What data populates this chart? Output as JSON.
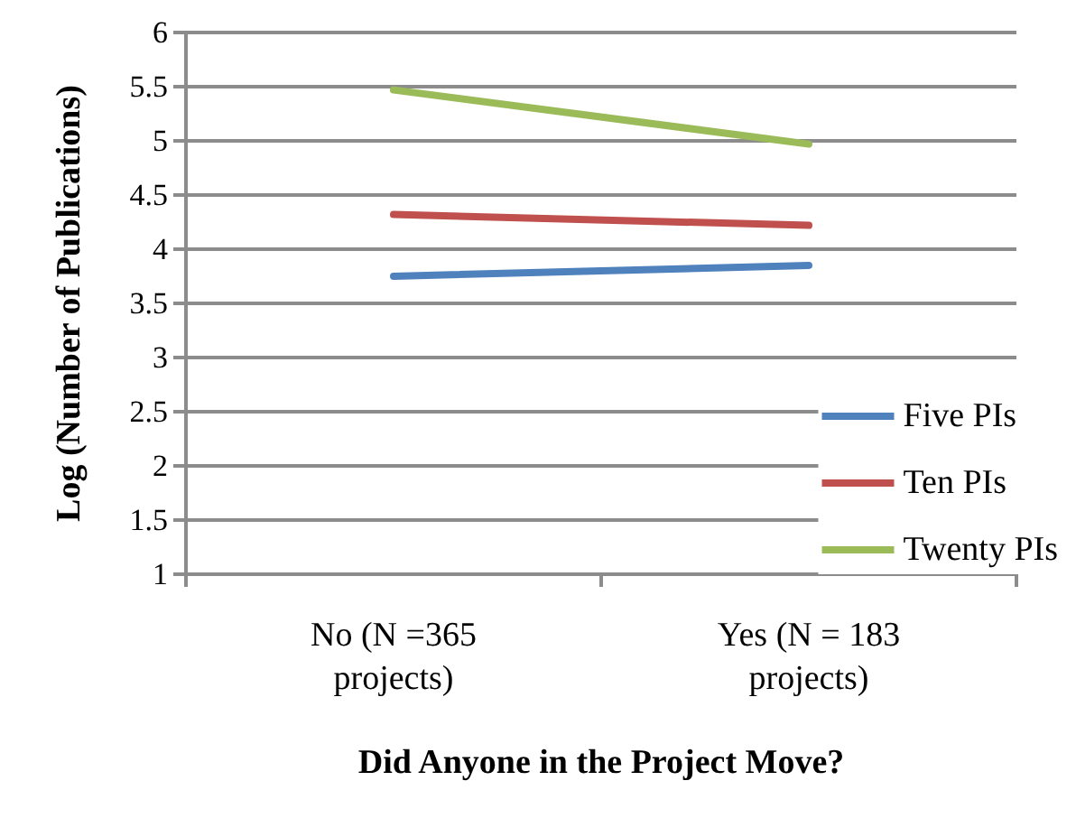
{
  "chart_data": {
    "type": "line",
    "xlabel": "Did Anyone in the Project Move?",
    "ylabel": "Log (Number of Publications)",
    "categories": [
      "No (N =365\nprojects)",
      "Yes (N = 183\nprojects)"
    ],
    "series": [
      {
        "name": "Five PIs",
        "color": "#4f81bd",
        "values": [
          3.75,
          3.85
        ]
      },
      {
        "name": "Ten PIs",
        "color": "#c0504d",
        "values": [
          4.32,
          4.22
        ]
      },
      {
        "name": "Twenty PIs",
        "color": "#9bbb59",
        "values": [
          5.47,
          4.97
        ]
      }
    ],
    "ylim": [
      1,
      6
    ],
    "yticks": [
      1,
      1.5,
      2,
      2.5,
      3,
      3.5,
      4,
      4.5,
      5,
      5.5,
      6
    ],
    "grid": "y",
    "legend": "bottom right",
    "marker": "none",
    "line_style": "solid"
  }
}
